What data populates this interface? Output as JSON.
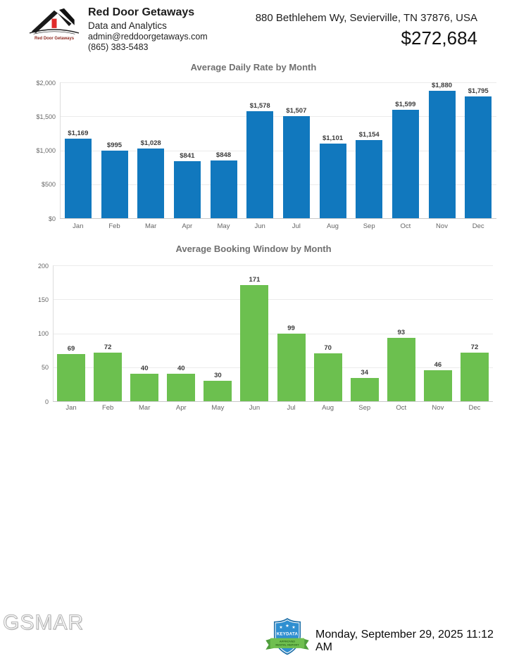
{
  "header": {
    "company": "Red Door Getaways",
    "subtitle": "Data and Analytics",
    "email": "admin@reddoorgetaways.com",
    "phone": "(865) 383-5483",
    "logo_caption": "Red Door Getaways",
    "address": "880 Bethlehem Wy, Sevierville, TN 37876, USA",
    "revenue": "$272,684"
  },
  "chart_data": [
    {
      "type": "bar",
      "title": "Average Daily Rate by Month",
      "categories": [
        "Jan",
        "Feb",
        "Mar",
        "Apr",
        "May",
        "Jun",
        "Jul",
        "Aug",
        "Sep",
        "Oct",
        "Nov",
        "Dec"
      ],
      "values": [
        1169,
        995,
        1028,
        841,
        848,
        1578,
        1507,
        1101,
        1154,
        1599,
        1880,
        1795
      ],
      "labels": [
        "$1,169",
        "$995",
        "$1,028",
        "$841",
        "$848",
        "$1,578",
        "$1,507",
        "$1,101",
        "$1,154",
        "$1,599",
        "$1,880",
        "$1,795"
      ],
      "ylim": [
        0,
        2000
      ],
      "yticks": [
        "$2,000",
        "$1,500",
        "$1,000",
        "$500",
        "$0"
      ],
      "color": "#1178be",
      "grid": true,
      "legend": "none",
      "xlabel": "",
      "ylabel": ""
    },
    {
      "type": "bar",
      "title": "Average Booking Window by Month",
      "categories": [
        "Jan",
        "Feb",
        "Mar",
        "Apr",
        "May",
        "Jun",
        "Jul",
        "Aug",
        "Sep",
        "Oct",
        "Nov",
        "Dec"
      ],
      "values": [
        69,
        72,
        40,
        40,
        30,
        171,
        99,
        70,
        34,
        93,
        46,
        72
      ],
      "labels": [
        "69",
        "72",
        "40",
        "40",
        "30",
        "171",
        "99",
        "70",
        "34",
        "93",
        "46",
        "72"
      ],
      "ylim": [
        0,
        200
      ],
      "yticks": [
        "200",
        "150",
        "100",
        "50",
        "0"
      ],
      "color": "#6cc04f",
      "grid": true,
      "legend": "none",
      "xlabel": "",
      "ylabel": ""
    }
  ],
  "footer": {
    "watermark": "GSMAR",
    "badge": {
      "title": "KEYDATA",
      "ribbon_line1": "APPROVED",
      "ribbon_line2": "RENTAL REPORT"
    },
    "timestamp": "Monday, September 29, 2025 11:12 AM"
  }
}
